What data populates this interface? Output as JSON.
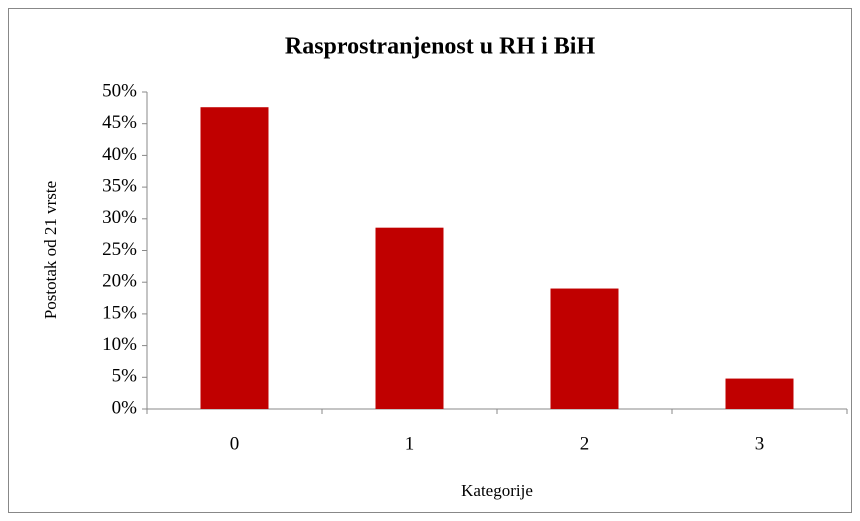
{
  "chart_data": {
    "type": "bar",
    "title": "Rasprostranjenost u RH i BiH",
    "x_label": "Kategorije",
    "y_label": "Postotak od 21 vrste",
    "categories": [
      "0",
      "1",
      "2",
      "3"
    ],
    "values": [
      47.6,
      28.6,
      19.0,
      4.8
    ],
    "color": "#c00000",
    "ylim": [
      0,
      50
    ],
    "yticks": [
      {
        "value": 0,
        "label": "0%"
      },
      {
        "value": 5,
        "label": "5%"
      },
      {
        "value": 10,
        "label": "10%"
      },
      {
        "value": 15,
        "label": "15%"
      },
      {
        "value": 20,
        "label": "20%"
      },
      {
        "value": 25,
        "label": "25%"
      },
      {
        "value": 30,
        "label": "30%"
      },
      {
        "value": 35,
        "label": "35%"
      },
      {
        "value": 40,
        "label": "40%"
      },
      {
        "value": 45,
        "label": "45%"
      },
      {
        "value": 50,
        "label": "50%"
      }
    ],
    "grid": false
  }
}
